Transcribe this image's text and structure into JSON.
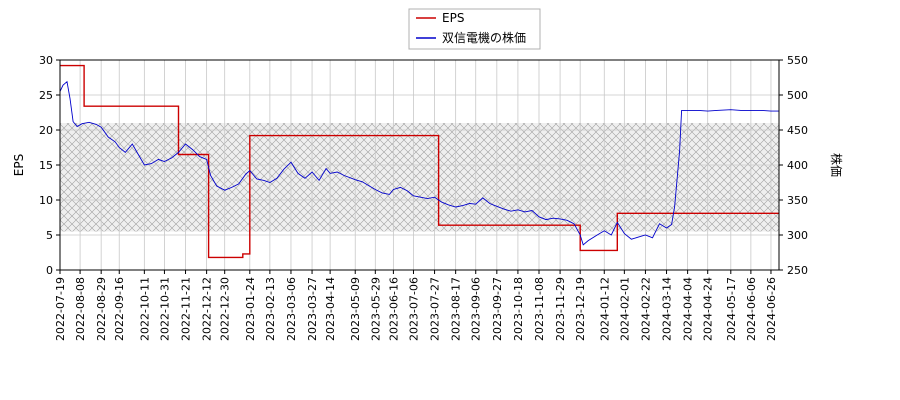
{
  "chart_data": {
    "type": "line",
    "legend": {
      "placement": "top-center"
    },
    "grid": true,
    "shaded_band": {
      "axis": "y_right",
      "from": 305,
      "to": 460,
      "pattern": "crosshatch"
    },
    "x_dates": [
      "2022-07-19",
      "2022-08-08",
      "2022-08-29",
      "2022-09-16",
      "2022-10-11",
      "2022-10-31",
      "2022-11-21",
      "2022-12-12",
      "2022-12-30",
      "2023-01-24",
      "2023-02-13",
      "2023-03-06",
      "2023-03-27",
      "2023-04-14",
      "2023-05-09",
      "2023-05-29",
      "2023-06-16",
      "2023-07-06",
      "2023-07-27",
      "2023-08-17",
      "2023-09-06",
      "2023-09-27",
      "2023-10-18",
      "2023-11-08",
      "2023-11-29",
      "2023-12-19",
      "2024-01-12",
      "2024-02-01",
      "2024-02-22",
      "2024-03-14",
      "2024-04-04",
      "2024-04-24",
      "2024-05-17",
      "2024-06-06",
      "2024-06-26"
    ],
    "y_left": {
      "label": "EPS",
      "range": [
        0,
        30
      ],
      "ticks": [
        0,
        5,
        10,
        15,
        20,
        25,
        30
      ]
    },
    "y_right": {
      "label": "株価",
      "range": [
        250,
        550
      ],
      "ticks": [
        250,
        300,
        350,
        400,
        450,
        500,
        550
      ]
    },
    "series": [
      {
        "name": "EPS",
        "color": "#cc0000",
        "axis": "left",
        "step": true,
        "points": [
          [
            "2022-07-19",
            29.2
          ],
          [
            "2022-08-12",
            29.2
          ],
          [
            "2022-08-12",
            23.4
          ],
          [
            "2022-11-14",
            23.4
          ],
          [
            "2022-11-14",
            16.5
          ],
          [
            "2022-12-14",
            16.5
          ],
          [
            "2022-12-14",
            1.8
          ],
          [
            "2023-01-17",
            1.8
          ],
          [
            "2023-01-17",
            2.3
          ],
          [
            "2023-01-24",
            2.3
          ],
          [
            "2023-01-24",
            19.2
          ],
          [
            "2023-07-31",
            19.2
          ],
          [
            "2023-07-31",
            6.4
          ],
          [
            "2023-12-19",
            6.4
          ],
          [
            "2023-12-19",
            2.8
          ],
          [
            "2024-01-25",
            2.8
          ],
          [
            "2024-01-25",
            8.1
          ],
          [
            "2024-07-04",
            8.1
          ]
        ]
      },
      {
        "name": "双信電機の株価",
        "color": "#0000cc",
        "axis": "right",
        "step": false,
        "points": [
          [
            "2022-07-19",
            505
          ],
          [
            "2022-07-22",
            514
          ],
          [
            "2022-07-26",
            519
          ],
          [
            "2022-07-29",
            495
          ],
          [
            "2022-08-01",
            462
          ],
          [
            "2022-08-05",
            455
          ],
          [
            "2022-08-10",
            459
          ],
          [
            "2022-08-17",
            461
          ],
          [
            "2022-08-24",
            458
          ],
          [
            "2022-08-29",
            454
          ],
          [
            "2022-09-05",
            440
          ],
          [
            "2022-09-12",
            433
          ],
          [
            "2022-09-16",
            425
          ],
          [
            "2022-09-22",
            418
          ],
          [
            "2022-09-29",
            430
          ],
          [
            "2022-10-05",
            415
          ],
          [
            "2022-10-11",
            400
          ],
          [
            "2022-10-18",
            402
          ],
          [
            "2022-10-25",
            408
          ],
          [
            "2022-10-31",
            405
          ],
          [
            "2022-11-07",
            410
          ],
          [
            "2022-11-14",
            418
          ],
          [
            "2022-11-21",
            430
          ],
          [
            "2022-11-28",
            422
          ],
          [
            "2022-12-05",
            412
          ],
          [
            "2022-12-12",
            408
          ],
          [
            "2022-12-16",
            385
          ],
          [
            "2022-12-22",
            370
          ],
          [
            "2022-12-30",
            364
          ],
          [
            "2023-01-06",
            368
          ],
          [
            "2023-01-13",
            373
          ],
          [
            "2023-01-20",
            387
          ],
          [
            "2023-01-24",
            392
          ],
          [
            "2023-01-31",
            380
          ],
          [
            "2023-02-07",
            378
          ],
          [
            "2023-02-13",
            375
          ],
          [
            "2023-02-20",
            381
          ],
          [
            "2023-02-27",
            394
          ],
          [
            "2023-03-06",
            404
          ],
          [
            "2023-03-13",
            388
          ],
          [
            "2023-03-20",
            381
          ],
          [
            "2023-03-27",
            390
          ],
          [
            "2023-04-03",
            378
          ],
          [
            "2023-04-10",
            395
          ],
          [
            "2023-04-14",
            388
          ],
          [
            "2023-04-21",
            390
          ],
          [
            "2023-04-28",
            385
          ],
          [
            "2023-05-09",
            379
          ],
          [
            "2023-05-16",
            376
          ],
          [
            "2023-05-23",
            370
          ],
          [
            "2023-05-29",
            365
          ],
          [
            "2023-06-05",
            360
          ],
          [
            "2023-06-12",
            358
          ],
          [
            "2023-06-16",
            365
          ],
          [
            "2023-06-23",
            368
          ],
          [
            "2023-06-30",
            363
          ],
          [
            "2023-07-06",
            356
          ],
          [
            "2023-07-13",
            354
          ],
          [
            "2023-07-20",
            352
          ],
          [
            "2023-07-27",
            354
          ],
          [
            "2023-08-03",
            347
          ],
          [
            "2023-08-10",
            343
          ],
          [
            "2023-08-17",
            340
          ],
          [
            "2023-08-24",
            342
          ],
          [
            "2023-08-31",
            345
          ],
          [
            "2023-09-06",
            344
          ],
          [
            "2023-09-13",
            353
          ],
          [
            "2023-09-20",
            345
          ],
          [
            "2023-09-27",
            341
          ],
          [
            "2023-10-04",
            337
          ],
          [
            "2023-10-11",
            334
          ],
          [
            "2023-10-18",
            336
          ],
          [
            "2023-10-25",
            333
          ],
          [
            "2023-11-01",
            335
          ],
          [
            "2023-11-08",
            326
          ],
          [
            "2023-11-15",
            322
          ],
          [
            "2023-11-22",
            324
          ],
          [
            "2023-11-29",
            323
          ],
          [
            "2023-12-06",
            321
          ],
          [
            "2023-12-13",
            316
          ],
          [
            "2023-12-19",
            300
          ],
          [
            "2023-12-22",
            286
          ],
          [
            "2023-12-27",
            292
          ],
          [
            "2024-01-05",
            300
          ],
          [
            "2024-01-12",
            306
          ],
          [
            "2024-01-19",
            300
          ],
          [
            "2024-01-25",
            318
          ],
          [
            "2024-02-01",
            302
          ],
          [
            "2024-02-08",
            294
          ],
          [
            "2024-02-15",
            297
          ],
          [
            "2024-02-22",
            300
          ],
          [
            "2024-02-29",
            296
          ],
          [
            "2024-03-07",
            316
          ],
          [
            "2024-03-14",
            310
          ],
          [
            "2024-03-19",
            315
          ],
          [
            "2024-03-22",
            340
          ],
          [
            "2024-03-27",
            420
          ],
          [
            "2024-03-29",
            478
          ],
          [
            "2024-04-04",
            478
          ],
          [
            "2024-04-15",
            478
          ],
          [
            "2024-04-24",
            477
          ],
          [
            "2024-05-03",
            478
          ],
          [
            "2024-05-17",
            479
          ],
          [
            "2024-05-27",
            478
          ],
          [
            "2024-06-06",
            478
          ],
          [
            "2024-06-16",
            478
          ],
          [
            "2024-06-26",
            477
          ],
          [
            "2024-07-04",
            477
          ]
        ]
      }
    ]
  }
}
